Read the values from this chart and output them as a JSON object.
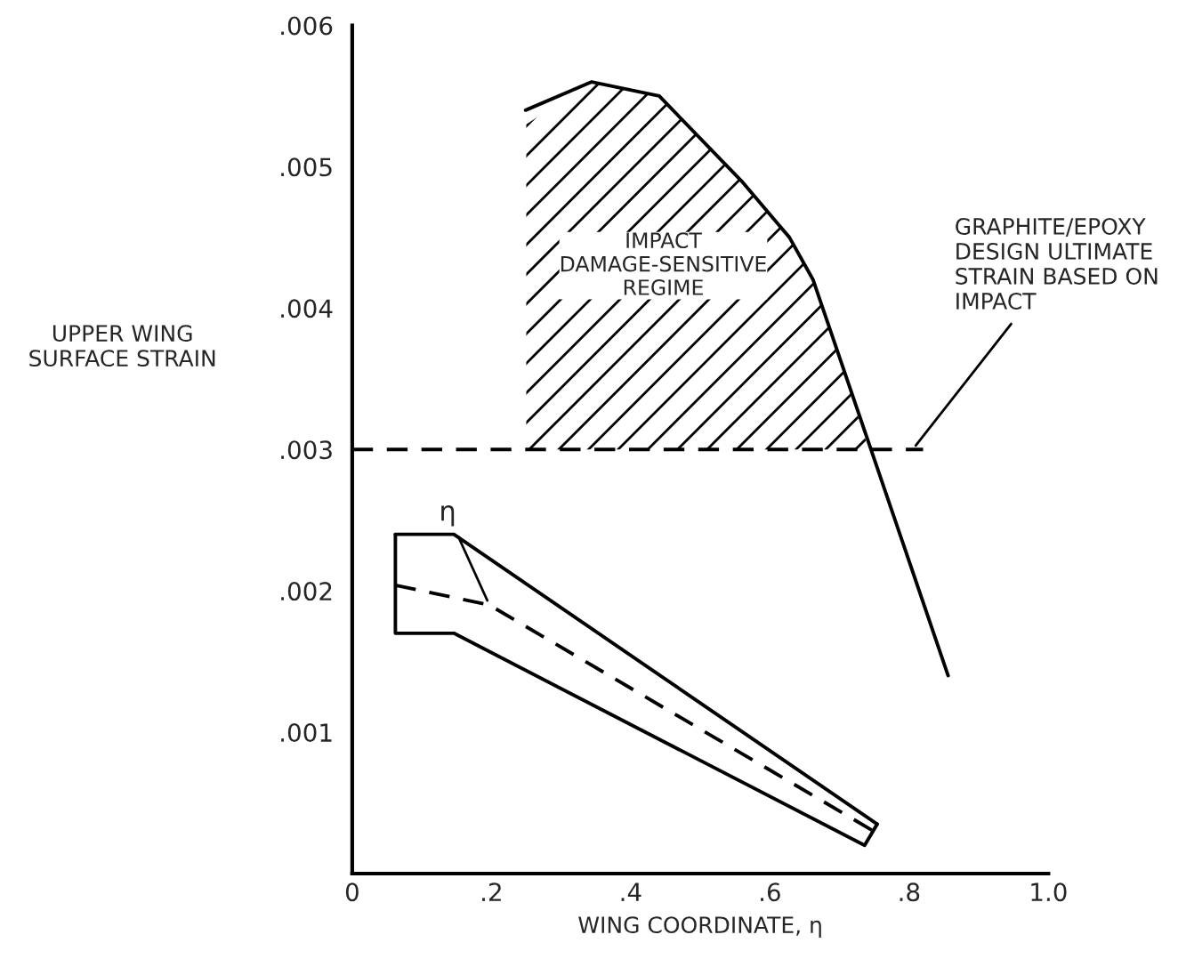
{
  "chart_data": {
    "type": "line",
    "xlabel": "WING COORDINATE, η",
    "ylabel": "UPPER WING\nSURFACE STRAIN",
    "xlim": [
      0,
      1.0
    ],
    "ylim": [
      0,
      0.006
    ],
    "xticks": [
      0,
      {
        "value": 0.2,
        "label": ".2"
      },
      {
        "value": 0.4,
        "label": ".4"
      },
      {
        "value": 0.6,
        "label": ".6"
      },
      {
        "value": 0.8,
        "label": ".8"
      },
      {
        "value": 1.0,
        "label": "1.0"
      }
    ],
    "yticks": [
      {
        "value": 0,
        "label": null
      },
      {
        "value": 0.001,
        "label": ".001"
      },
      {
        "value": 0.002,
        "label": ".002"
      },
      {
        "value": 0.003,
        "label": ".003"
      },
      {
        "value": 0.004,
        "label": ".004"
      },
      {
        "value": 0.005,
        "label": ".005"
      },
      {
        "value": 0.006,
        "label": ".006"
      }
    ],
    "grid": false,
    "legend": false,
    "series": [
      {
        "type": "area",
        "name": "IMPACT\nDAMAGE-SENSITIVE\nREGIME",
        "color": "#000000",
        "x": [
          0.25,
          0.344,
          0.441,
          0.559,
          0.628,
          0.662,
          0.742
        ],
        "values": [
          0.0053,
          0.0056,
          0.0055,
          0.0049,
          0.0045,
          0.0042,
          0.003
        ]
      },
      {
        "color": "#000000",
        "line_style": "solid",
        "x": [
          0.249,
          0.344,
          0.441,
          0.559,
          0.628,
          0.662,
          0.856
        ],
        "values": [
          0.0054,
          0.0056,
          0.0055,
          0.0049,
          0.0045,
          0.0042,
          0.0014
        ]
      },
      {
        "color": "#000000",
        "line_style": "solid",
        "x": [
          0.062,
          0.146,
          0.754
        ],
        "values": [
          0.0024,
          0.0024,
          0.00035
        ]
      },
      {
        "color": "#000000",
        "line_style": "solid",
        "x": [
          0.062,
          0.062,
          0.146,
          0.736,
          0.754
        ],
        "values": [
          0.0024,
          0.0017,
          0.0017,
          0.0002,
          0.00035
        ]
      },
      {
        "color": "#000000",
        "line_style": "dashed",
        "x": [
          0.062,
          0.197,
          0.749
        ],
        "values": [
          0.00204,
          0.0019,
          0.0003
        ]
      }
    ],
    "ref_lines": [
      {
        "axis": "y",
        "value": 0.003,
        "label": "GRAPHITE/EPOXY\nDESIGN ULTIMATE\nSTRAIN BASED ON\nIMPACT",
        "line_style": "dashed",
        "color": "#000000"
      }
    ],
    "annotations": [
      {
        "text": "η",
        "x": 0.197,
        "y": 0.0019
      }
    ]
  }
}
